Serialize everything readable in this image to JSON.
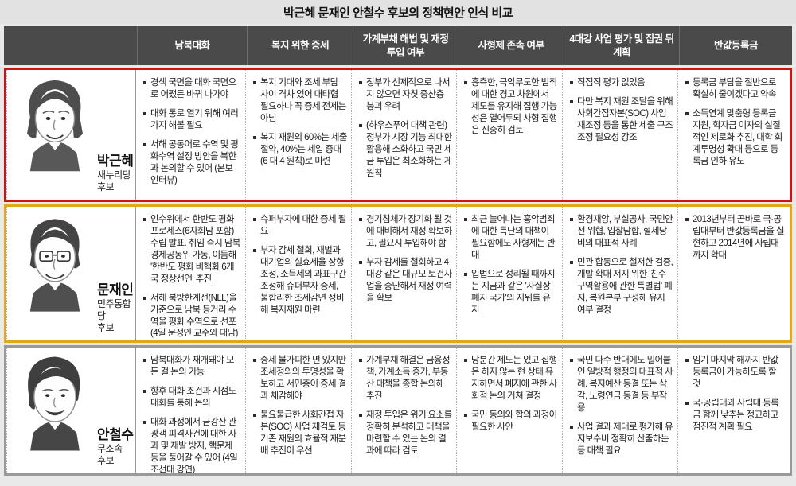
{
  "title": "박근혜 문재인 안철수 후보의 정책현안 인식 비교",
  "columns": [
    "남북대화",
    "복지 위한 증세",
    "가계부채 해법 및 재정 투입 여부",
    "사형제 존속 여부",
    "4대강 사업 평가 및 집권 뒤 계획",
    "반값등록금"
  ],
  "colors": {
    "header_bg": "#4a4a4a",
    "title_bg": "#e2e2e2",
    "park_border": "#c81613",
    "moon_border": "#e2a51d",
    "ahn_border": "#9a9a9a"
  },
  "rows": [
    {
      "name": "박근혜",
      "party": "새누리당",
      "role": "후보",
      "border_color": "#c81613",
      "cells": [
        [
          "경색 국면을 대화 국면으로 어쨌든 바꿔 나가야",
          "대화 통로 열기 위해 여러 가지 해볼 필요",
          "서해 공동어로 수역 및 평화수역 설정 방안을 북한과 논의할 수 있어 (본보 인터뷰)"
        ],
        [
          "복지 기대와 조세 부담 사이 격차 있어 대타협 필요하나 꼭 증세 전제는 아님",
          "복지 재원의 60%는 세출 절약, 40%는 세입 증대(6 대 4 원칙)로 마련"
        ],
        [
          "정부가 선제적으로 나서지 않으면 자칫 중산층 붕괴 우려",
          "(하우스푸어 대책 관련) 정부가 시장 기능 최대한 활용해 소화하고 국민 세금 투입은 최소화하는 게 원칙"
        ],
        [
          "흉측한, 극악무도한 범죄에 대한 경고 차원에서 제도를 유지해 집행 가능성은 열어두되 사형 집행은 신중히 검토"
        ],
        [
          "직접적 평가 없었음",
          "다만 복지 재원 조달을 위해 사회간접자본(SOC) 사업 재조정 등을 통한 세출 구조조정 필요성 강조"
        ],
        [
          "등록금 부담을 절반으로 확실히 줄이겠다고 약속",
          "소득연계 맞춤형 등록금 지원, 학자금 이자의 실질적인 제로화 추진, 대학 회계투명성 확대 등으로 등록금 인하 유도"
        ]
      ]
    },
    {
      "name": "문재인",
      "party": "민주통합당",
      "role": "후보",
      "border_color": "#e2a51d",
      "cells": [
        [
          "인수위에서 한반도 평화 프로세스(6자회담 포함) 수립 발표. 취임 즉시 남북경제공동위 가동, 이듬해 '한반도 평화 비핵화 6개국 정상선언' 추진",
          "서해 북방한계선(NLL)을 기준으로 남북 등거리 수역을 평화 수역으로 선포 (4일 문정인 교수와 대담)"
        ],
        [
          "슈퍼부자에 대한 증세 필요",
          "부자 감세 철회, 재벌과 대기업의 실효세율 상향 조정, 소득세의 과표구간 조정해 슈퍼부자 증세, 불합리한 조세감면 정비해 복지재원 마련"
        ],
        [
          "경기침체가 장기화 될 것에 대비해서 재정 확보하고, 필요시 투입해야 함",
          "부자 감세를 철회하고 4대강 같은 대규모 토건사업을 중단해서 재정 여력을 확보"
        ],
        [
          "최근 늘어나는 흉악범죄에 대한 특단의 대책이 필요함에도 사형제는 반대",
          "입법으로 정리될 때까지는 지금과 같은 '사실상 폐지 국가'의 지위를 유지"
        ],
        [
          "환경재앙, 부실공사, 국민안전 위협, 입찰담합, 혈세낭비의 대표적 사례",
          "민관 합동으로 철저한 검증, 개발 확대 저지 위한 '친수구역활용에 관한 특별법' 폐지, 복원본부 구성해 유지 여부 결정"
        ],
        [
          "2013년부터 곧바로 국·공립대부터 반값등록금을 실현하고 2014년에 사립대까지 확대"
        ]
      ]
    },
    {
      "name": "안철수",
      "party": "무소속",
      "role": "후보",
      "border_color": "#9a9a9a",
      "cells": [
        [
          "남북대화가 재개돼야 모든 걸 논의 가능",
          "향후 대화 조건과 시점도 대화를 통해 논의",
          "대화 과정에서 금강산 관광객 피격사건에 대한 사과 및 재발 방지, 핵문제 등을 풀어갈 수 있어 (4일 조선대 강연)"
        ],
        [
          "증세 불가피한 면 있지만 조세정의와 투명성을 확보하고 서민층이 증세 결과 체감해야",
          "불요불급한 사회간접 자본(SOC) 사업 재검토 등 기존 재원의 효율적 재분배 추진이 우선"
        ],
        [
          "가계부채 해결은 금융정책, 가계소득 증가, 부동산 대책을 종합 논의해 추진",
          "재정 투입은 위기 요소를 정확히 분석하고 대책을 마련할 수 있는 논의 결과에 따라 검토"
        ],
        [
          "당분간 제도는 있고 집행은 하지 않는 현 상태 유지하면서 폐지에 관한 사회적 논의 거쳐 결정",
          "국민 동의와 합의 과정이 필요한 사안"
        ],
        [
          "국민 다수 반대에도 밀어붙인 일방적 행정의 대표적 사례. 복지예산 동결 또는 삭감, 노령연금 동결 등 부작용",
          "사업 결과 제대로 평가해 유지보수비 정확히 산출하는 등 대책 필요"
        ],
        [
          "임기 마지막 해까지 반값등록금이 가능하도록 할 것",
          "국·공립대와 사립대 등록금 함께 낮추는 정교하고 점진적 계획 필요"
        ]
      ]
    }
  ]
}
